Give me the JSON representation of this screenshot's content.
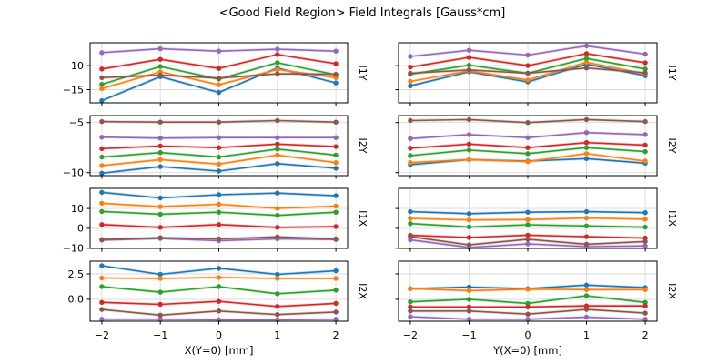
{
  "title": "<Good Field Region> Field Integrals [Gauss*cm]",
  "colors": {
    "background": "#ffffff",
    "axes_frame": "#000000",
    "grid": "#d9d9d9",
    "text": "#000000",
    "series_palette": [
      "#1f77b4",
      "#ff7f0e",
      "#2ca02c",
      "#d62728",
      "#9467bd",
      "#8c564b"
    ]
  },
  "chart_data": {
    "type": "line",
    "title": "<Good Field Region> Field Integrals [Gauss*cm]",
    "grid": true,
    "legend": "none",
    "marker": "circle",
    "x": [
      -2,
      -1,
      0,
      1,
      2
    ],
    "xlim": [
      -2.2,
      2.2
    ],
    "xticks": [
      -2,
      -1,
      0,
      1,
      2
    ],
    "xtick_labels": [
      "−2",
      "−1",
      "0",
      "1",
      "2"
    ],
    "columns": [
      {
        "key": "left",
        "xlabel": "X(Y=0) [mm]"
      },
      {
        "key": "right",
        "xlabel": "Y(X=0) [mm]"
      }
    ],
    "rows": [
      {
        "label": "I1Y",
        "ylim": [
          -17.75,
          -5.25
        ],
        "yticks": [
          -10,
          -15
        ],
        "ytick_labels": [
          "−10",
          "−15"
        ],
        "left": {
          "series": [
            {
              "name": "blue",
              "color": "#1f77b4",
              "values": [
                -17.3,
                -12.3,
                -15.6,
                -10.5,
                -13.6
              ]
            },
            {
              "name": "orange",
              "color": "#ff7f0e",
              "values": [
                -14.8,
                -11.3,
                -14.0,
                -10.8,
                -12.5
              ]
            },
            {
              "name": "green",
              "color": "#2ca02c",
              "values": [
                -13.9,
                -10.2,
                -12.8,
                -9.4,
                -11.9
              ]
            },
            {
              "name": "red",
              "color": "#d62728",
              "values": [
                -10.7,
                -8.7,
                -10.6,
                -7.7,
                -9.6
              ]
            },
            {
              "name": "purple",
              "color": "#9467bd",
              "values": [
                -7.3,
                -6.5,
                -7.0,
                -6.6,
                -7.0
              ]
            },
            {
              "name": "brown",
              "color": "#8c564b",
              "values": [
                -12.5,
                -12.0,
                -12.6,
                -11.7,
                -11.8
              ]
            }
          ]
        },
        "right": {
          "series": [
            {
              "name": "blue",
              "color": "#1f77b4",
              "values": [
                -14.2,
                -11.3,
                -13.4,
                -9.7,
                -12.1
              ]
            },
            {
              "name": "orange",
              "color": "#ff7f0e",
              "values": [
                -13.3,
                -11.1,
                -13.0,
                -9.3,
                -11.7
              ]
            },
            {
              "name": "green",
              "color": "#2ca02c",
              "values": [
                -11.8,
                -9.9,
                -11.6,
                -8.5,
                -10.7
              ]
            },
            {
              "name": "red",
              "color": "#d62728",
              "values": [
                -10.3,
                -8.3,
                -10.0,
                -7.5,
                -9.4
              ]
            },
            {
              "name": "purple",
              "color": "#9467bd",
              "values": [
                -8.1,
                -6.8,
                -7.8,
                -5.9,
                -7.6
              ]
            },
            {
              "name": "brown",
              "color": "#8c564b",
              "values": [
                -11.6,
                -10.9,
                -11.6,
                -10.5,
                -11.5
              ]
            }
          ]
        }
      },
      {
        "label": "I2Y",
        "ylim": [
          -10.3,
          -4.3
        ],
        "yticks": [
          -5,
          -10
        ],
        "ytick_labels": [
          "−5",
          "−10"
        ],
        "left": {
          "series": [
            {
              "name": "blue",
              "color": "#1f77b4",
              "values": [
                -10.05,
                -9.4,
                -9.85,
                -9.1,
                -9.55
              ]
            },
            {
              "name": "orange",
              "color": "#ff7f0e",
              "values": [
                -9.3,
                -8.7,
                -9.15,
                -8.25,
                -9.0
              ]
            },
            {
              "name": "green",
              "color": "#2ca02c",
              "values": [
                -8.45,
                -8.0,
                -8.45,
                -7.65,
                -8.25
              ]
            },
            {
              "name": "red",
              "color": "#d62728",
              "values": [
                -7.6,
                -7.35,
                -7.5,
                -7.15,
                -7.4
              ]
            },
            {
              "name": "purple",
              "color": "#9467bd",
              "values": [
                -6.45,
                -6.55,
                -6.5,
                -6.5,
                -6.5
              ]
            },
            {
              "name": "brown",
              "color": "#8c564b",
              "values": [
                -4.9,
                -4.95,
                -4.95,
                -4.8,
                -4.95
              ]
            }
          ]
        },
        "right": {
          "series": [
            {
              "name": "blue",
              "color": "#1f77b4",
              "values": [
                -9.2,
                -8.7,
                -8.85,
                -8.6,
                -9.05
              ]
            },
            {
              "name": "orange",
              "color": "#ff7f0e",
              "values": [
                -9.0,
                -8.7,
                -8.9,
                -8.1,
                -8.85
              ]
            },
            {
              "name": "green",
              "color": "#2ca02c",
              "values": [
                -8.3,
                -7.75,
                -8.1,
                -7.5,
                -7.9
              ]
            },
            {
              "name": "red",
              "color": "#d62728",
              "values": [
                -7.55,
                -7.15,
                -7.5,
                -7.0,
                -7.25
              ]
            },
            {
              "name": "purple",
              "color": "#9467bd",
              "values": [
                -6.6,
                -6.2,
                -6.5,
                -6.0,
                -6.2
              ]
            },
            {
              "name": "brown",
              "color": "#8c564b",
              "values": [
                -4.8,
                -4.7,
                -5.0,
                -4.7,
                -4.9
              ]
            }
          ]
        }
      },
      {
        "label": "I1X",
        "ylim": [
          -10.1,
          20.1
        ],
        "yticks": [
          10,
          0,
          -10
        ],
        "ytick_labels": [
          "10",
          "0",
          "−10"
        ],
        "left": {
          "series": [
            {
              "name": "blue",
              "color": "#1f77b4",
              "values": [
                18.1,
                15.3,
                16.9,
                17.7,
                16.4
              ]
            },
            {
              "name": "orange",
              "color": "#ff7f0e",
              "values": [
                12.6,
                10.9,
                12.1,
                10.1,
                11.2
              ]
            },
            {
              "name": "green",
              "color": "#2ca02c",
              "values": [
                8.5,
                7.1,
                8.1,
                6.5,
                8.1
              ]
            },
            {
              "name": "red",
              "color": "#d62728",
              "values": [
                1.9,
                0.5,
                1.9,
                0.5,
                0.9
              ]
            },
            {
              "name": "purple",
              "color": "#9467bd",
              "values": [
                -5.9,
                -5.1,
                -6.2,
                -5.3,
                -5.6
              ]
            },
            {
              "name": "brown",
              "color": "#8c564b",
              "values": [
                -5.6,
                -4.7,
                -5.3,
                -4.3,
                -5.3
              ]
            }
          ]
        },
        "right": {
          "series": [
            {
              "name": "blue",
              "color": "#1f77b4",
              "values": [
                8.4,
                7.4,
                8.1,
                8.4,
                7.9
              ]
            },
            {
              "name": "orange",
              "color": "#ff7f0e",
              "values": [
                5.0,
                4.2,
                4.4,
                5.2,
                4.6
              ]
            },
            {
              "name": "green",
              "color": "#2ca02c",
              "values": [
                2.4,
                0.7,
                1.8,
                1.2,
                0.6
              ]
            },
            {
              "name": "red",
              "color": "#d62728",
              "values": [
                -3.5,
                -4.6,
                -3.4,
                -4.2,
                -4.9
              ]
            },
            {
              "name": "purple",
              "color": "#9467bd",
              "values": [
                -5.8,
                -9.6,
                -7.8,
                -9.2,
                -8.8
              ]
            },
            {
              "name": "brown",
              "color": "#8c564b",
              "values": [
                -4.2,
                -8.3,
                -5.5,
                -8.0,
                -6.6
              ]
            }
          ]
        }
      },
      {
        "label": "I2X",
        "ylim": [
          -2.15,
          3.75
        ],
        "yticks": [
          2.5,
          0.0
        ],
        "ytick_labels": [
          "2.5",
          "0.0"
        ],
        "left": {
          "series": [
            {
              "name": "blue",
              "color": "#1f77b4",
              "values": [
                3.3,
                2.45,
                3.05,
                2.45,
                2.8
              ]
            },
            {
              "name": "orange",
              "color": "#ff7f0e",
              "values": [
                2.1,
                2.05,
                2.15,
                2.05,
                2.05
              ]
            },
            {
              "name": "green",
              "color": "#2ca02c",
              "values": [
                1.25,
                0.7,
                1.25,
                0.55,
                0.9
              ]
            },
            {
              "name": "red",
              "color": "#d62728",
              "values": [
                -0.3,
                -0.5,
                -0.2,
                -0.7,
                -0.4
              ]
            },
            {
              "name": "purple",
              "color": "#9467bd",
              "values": [
                -1.95,
                -1.95,
                -2.0,
                -2.0,
                -1.95
              ]
            },
            {
              "name": "brown",
              "color": "#8c564b",
              "values": [
                -1.0,
                -1.55,
                -1.15,
                -1.5,
                -1.25
              ]
            }
          ]
        },
        "right": {
          "series": [
            {
              "name": "blue",
              "color": "#1f77b4",
              "values": [
                1.05,
                1.2,
                1.05,
                1.4,
                1.15
              ]
            },
            {
              "name": "orange",
              "color": "#ff7f0e",
              "values": [
                1.05,
                0.85,
                1.0,
                0.95,
                0.95
              ]
            },
            {
              "name": "green",
              "color": "#2ca02c",
              "values": [
                -0.25,
                0.0,
                -0.4,
                0.35,
                -0.3
              ]
            },
            {
              "name": "red",
              "color": "#d62728",
              "values": [
                -0.75,
                -0.75,
                -0.75,
                -0.65,
                -0.65
              ]
            },
            {
              "name": "purple",
              "color": "#9467bd",
              "values": [
                -1.7,
                -1.95,
                -1.95,
                -1.75,
                -1.95
              ]
            },
            {
              "name": "brown",
              "color": "#8c564b",
              "values": [
                -1.15,
                -1.15,
                -1.45,
                -1.0,
                -1.35
              ]
            }
          ]
        }
      }
    ]
  }
}
